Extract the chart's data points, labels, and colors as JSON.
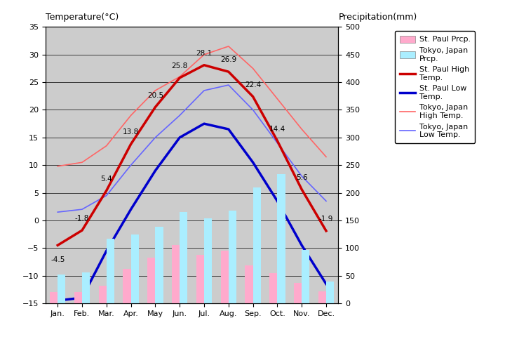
{
  "months": [
    "Jan.",
    "Feb.",
    "Mar.",
    "Apr.",
    "May",
    "Jun.",
    "Jul.",
    "Aug.",
    "Sep.",
    "Oct.",
    "Nov.",
    "Dec."
  ],
  "st_paul_high": [
    -4.5,
    -1.8,
    5.4,
    13.8,
    20.5,
    25.8,
    28.1,
    26.9,
    22.4,
    14.4,
    5.6,
    -1.9
  ],
  "st_paul_low": [
    -14.5,
    -14.0,
    -5.5,
    2.0,
    9.0,
    15.0,
    17.5,
    16.5,
    10.5,
    3.5,
    -4.5,
    -11.5
  ],
  "tokyo_high": [
    9.8,
    10.5,
    13.5,
    19.0,
    23.5,
    26.0,
    30.0,
    31.5,
    27.5,
    22.0,
    16.5,
    11.5
  ],
  "tokyo_low": [
    1.5,
    2.0,
    4.5,
    10.0,
    15.0,
    19.0,
    23.5,
    24.5,
    20.0,
    14.0,
    8.0,
    3.5
  ],
  "st_paul_precip_mm": [
    20,
    20,
    32,
    62,
    82,
    105,
    88,
    95,
    68,
    55,
    37,
    22
  ],
  "tokyo_precip_mm": [
    52,
    56,
    117,
    125,
    138,
    165,
    154,
    168,
    210,
    234,
    97,
    40
  ],
  "temp_ylim": [
    -15,
    35
  ],
  "precip_ylim": [
    0,
    500
  ],
  "temp_yticks": [
    -15,
    -10,
    -5,
    0,
    5,
    10,
    15,
    20,
    25,
    30,
    35
  ],
  "precip_yticks": [
    0,
    50,
    100,
    150,
    200,
    250,
    300,
    350,
    400,
    450,
    500
  ],
  "st_paul_high_color": "#cc0000",
  "st_paul_low_color": "#0000cc",
  "tokyo_high_color": "#ff6666",
  "tokyo_low_color": "#6666ff",
  "st_paul_precip_color": "#ffaacc",
  "tokyo_precip_color": "#aaeeff",
  "bg_color": "#cccccc",
  "title_left": "Temperature(°C)",
  "title_right": "Precipitation(mm)",
  "ann_indices": [
    0,
    1,
    2,
    3,
    4,
    5,
    6,
    7,
    8,
    9,
    10,
    11
  ],
  "ann_labels": [
    "-4.5",
    "-1.8",
    "5.4",
    "13.8",
    "20.5",
    "25.8",
    "28.1",
    "26.9",
    "22.4",
    "14.4",
    "5.6",
    "-1.9"
  ],
  "ann_offsets_y": [
    -2.0,
    1.5,
    1.5,
    1.5,
    1.5,
    1.5,
    1.5,
    1.5,
    1.5,
    1.5,
    1.5,
    1.5
  ],
  "legend_labels": [
    "St. Paul Prcp.",
    "Tokyo, Japan\nPrcp.",
    "St. Paul High\nTemp.",
    "St. Paul Low\nTemp.",
    "Tokyo, Japan\nHigh Temp.",
    "Tokyo, Japan\nLow Temp."
  ]
}
